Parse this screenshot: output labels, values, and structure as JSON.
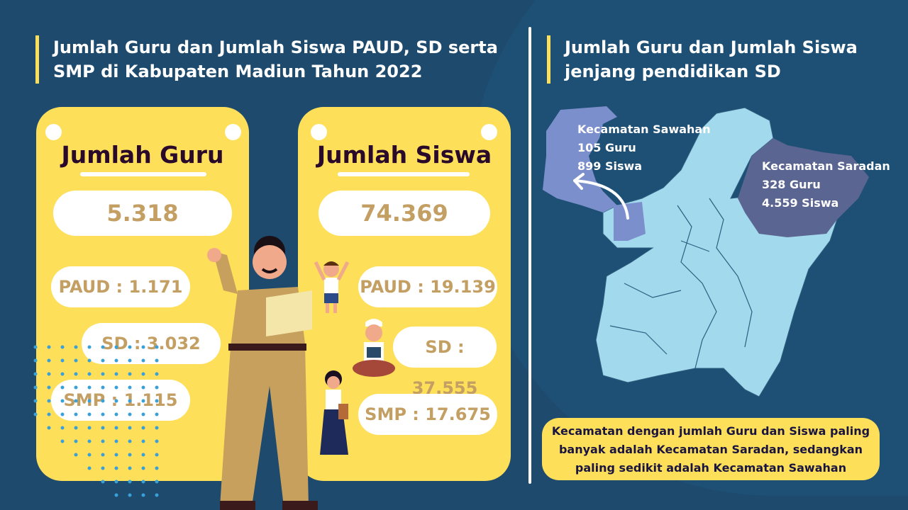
{
  "left_title": "Jumlah Guru dan Jumlah Siswa PAUD, SD serta SMP di Kabupaten Madiun Tahun 2022",
  "right_title": "Jumlah Guru dan Jumlah Siswa jenjang pendidikan SD",
  "guru_card": {
    "heading": "Jumlah Guru",
    "total": "5.318",
    "paud": "PAUD : 1.171",
    "sd": "SD : 3.032",
    "smp": "SMP : 1.115"
  },
  "siswa_card": {
    "heading": "Jumlah Siswa",
    "total": "74.369",
    "paud": "PAUD : 19.139",
    "sd": "SD : 37.555",
    "smp": "SMP : 17.675"
  },
  "map": {
    "sawahan": {
      "name": "Kecamatan Sawahan",
      "guru": "105 Guru",
      "siswa": "899 Siswa"
    },
    "saradan": {
      "name": "Kecamatan Saradan",
      "guru": "328 Guru",
      "siswa": "4.559 Siswa"
    }
  },
  "conclusion": "Kecamatan dengan jumlah Guru dan Siswa paling banyak adalah Kecamatan Saradan, sedangkan paling sedikit adalah Kecamatan Sawahan",
  "colors": {
    "background": "#1d4a6d",
    "card": "#fddf5a",
    "value_text": "#c49f63",
    "map_base": "#a2d9ec",
    "sawahan": "#7b8fcc",
    "saradan": "#5a6592"
  }
}
